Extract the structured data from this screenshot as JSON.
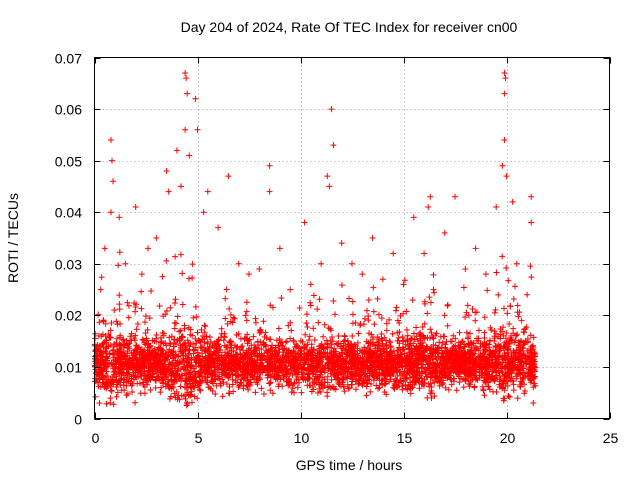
{
  "chart_data": {
    "type": "scatter",
    "title": "Day 204 of 2024, Rate Of TEC Index for receiver cn00",
    "xlabel": "GPS time / hours",
    "ylabel": "ROTI / TECUs",
    "xlim": [
      0,
      25
    ],
    "ylim": [
      0,
      0.07
    ],
    "xticks": [
      0,
      5,
      10,
      15,
      20,
      25
    ],
    "xtick_labels": [
      "0",
      "5",
      "10",
      "15",
      "20",
      "25"
    ],
    "yticks": [
      0,
      0.01,
      0.02,
      0.03,
      0.04,
      0.05,
      0.06,
      0.07
    ],
    "ytick_labels": [
      "0",
      "0.01",
      "0.02",
      "0.03",
      "0.04",
      "0.05",
      "0.06",
      "0.07"
    ],
    "grid": true,
    "marker": "plus",
    "color": "#ff0000",
    "series": [
      {
        "name": "ROTI",
        "description_range": "dense band 0.003-0.02 TECU/s from 0 to 21.4 h",
        "points": [
          [
            0.3,
            0.025
          ],
          [
            0.5,
            0.033
          ],
          [
            0.8,
            0.054
          ],
          [
            0.85,
            0.05
          ],
          [
            0.9,
            0.046
          ],
          [
            0.8,
            0.04
          ],
          [
            1.2,
            0.039
          ],
          [
            1.5,
            0.03
          ],
          [
            2.0,
            0.041
          ],
          [
            2.3,
            0.028
          ],
          [
            2.6,
            0.033
          ],
          [
            3.0,
            0.035
          ],
          [
            3.5,
            0.048
          ],
          [
            3.6,
            0.044
          ],
          [
            4.0,
            0.052
          ],
          [
            4.2,
            0.045
          ],
          [
            4.4,
            0.067
          ],
          [
            4.45,
            0.066
          ],
          [
            4.5,
            0.063
          ],
          [
            4.4,
            0.056
          ],
          [
            4.6,
            0.051
          ],
          [
            4.9,
            0.062
          ],
          [
            5.0,
            0.056
          ],
          [
            5.5,
            0.044
          ],
          [
            5.3,
            0.04
          ],
          [
            6.0,
            0.037
          ],
          [
            6.5,
            0.047
          ],
          [
            7.0,
            0.03
          ],
          [
            7.5,
            0.028
          ],
          [
            8.0,
            0.029
          ],
          [
            8.5,
            0.049
          ],
          [
            8.5,
            0.044
          ],
          [
            9.0,
            0.033
          ],
          [
            9.5,
            0.025
          ],
          [
            10.2,
            0.038
          ],
          [
            10.5,
            0.026
          ],
          [
            11.0,
            0.03
          ],
          [
            11.3,
            0.047
          ],
          [
            11.4,
            0.045
          ],
          [
            11.5,
            0.06
          ],
          [
            11.6,
            0.053
          ],
          [
            12.0,
            0.034
          ],
          [
            12.5,
            0.03
          ],
          [
            13.0,
            0.028
          ],
          [
            13.5,
            0.035
          ],
          [
            14.0,
            0.027
          ],
          [
            14.5,
            0.032
          ],
          [
            15.0,
            0.026
          ],
          [
            15.5,
            0.039
          ],
          [
            16.0,
            0.032
          ],
          [
            16.3,
            0.043
          ],
          [
            16.2,
            0.041
          ],
          [
            17.0,
            0.036
          ],
          [
            17.5,
            0.043
          ],
          [
            18.0,
            0.029
          ],
          [
            18.5,
            0.033
          ],
          [
            19.0,
            0.028
          ],
          [
            19.5,
            0.041
          ],
          [
            19.8,
            0.049
          ],
          [
            19.9,
            0.067
          ],
          [
            19.95,
            0.066
          ],
          [
            19.9,
            0.063
          ],
          [
            19.9,
            0.054
          ],
          [
            20.0,
            0.047
          ],
          [
            20.3,
            0.042
          ],
          [
            20.5,
            0.03
          ],
          [
            21.0,
            0.024
          ],
          [
            21.2,
            0.043
          ],
          [
            21.2,
            0.038
          ],
          [
            21.3,
            0.003
          ]
        ]
      }
    ]
  }
}
